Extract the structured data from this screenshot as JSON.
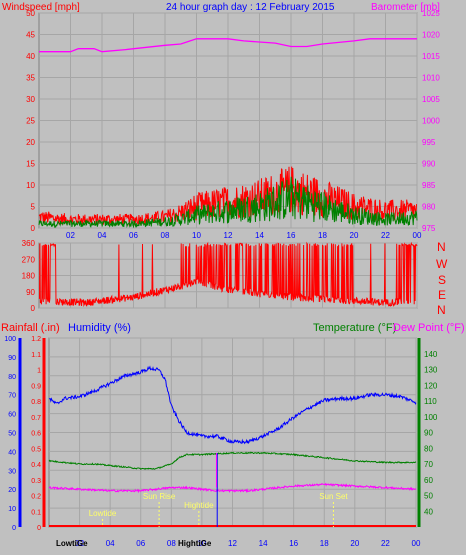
{
  "colors": {
    "bg": "#c0c0c0",
    "plot": "#c0c0c0",
    "grid": "#a6a6a6",
    "wind_axis": "#ff0000",
    "baro": "#ff00ff",
    "title": "#0000ff",
    "gust": "#ff0000",
    "wind": "#008000",
    "dir": "#ff0000",
    "humidity": "#0000ff",
    "temperature": "#008000",
    "dewpoint": "#ff00ff",
    "rain": "#ff0000",
    "tide": "#ffff66"
  },
  "header": {
    "wind_label": "Windspeed [mph]",
    "title": "24 hour graph day : 12 February 2015",
    "baro_label": "Barometer [mb]"
  },
  "bottom_header": {
    "rain_label": "Rainfall (.in)",
    "humidity_label": "Humidity (%)",
    "temp_label": "Temperature (°F)",
    "dew_label": "Dew Point (°F)"
  },
  "compass": [
    "N",
    "W",
    "S",
    "E",
    "N"
  ],
  "x_tick_labels": [
    "02",
    "04",
    "06",
    "08",
    "10",
    "12",
    "14",
    "16",
    "18",
    "20",
    "22",
    "00"
  ],
  "bottom_x_tick_labels": [
    "02",
    "04",
    "06",
    "08",
    "10",
    "12",
    "14",
    "16",
    "18",
    "20",
    "22",
    "00"
  ],
  "bottom_x_overlay": {
    "lowtide": "LowtiGe",
    "hightide": "HightiGe"
  },
  "annotations": [
    {
      "label": "Lowtide",
      "x": 3.5
    },
    {
      "label": "Sun Rise",
      "x": 7.2
    },
    {
      "label": "Hightide",
      "x": 9.8
    },
    {
      "label": "Sun Set",
      "x": 18.6
    }
  ],
  "chart_data": [
    {
      "type": "line",
      "title": "24 hour graph day : 12 February 2015",
      "x_range": [
        0,
        24
      ],
      "y_left": {
        "label": "Windspeed [mph]",
        "range": [
          0,
          50
        ],
        "ticks": [
          0,
          5,
          10,
          15,
          20,
          25,
          30,
          35,
          40,
          45,
          50
        ]
      },
      "y_right": {
        "label": "Barometer [mb]",
        "range": [
          975,
          1025
        ],
        "ticks": [
          975,
          980,
          985,
          990,
          995,
          1000,
          1005,
          1010,
          1015,
          1020,
          1025
        ]
      },
      "series": [
        {
          "role": "wind",
          "points": [
            [
              0,
              1
            ],
            [
              2,
              1
            ],
            [
              4,
              1
            ],
            [
              6,
              1
            ],
            [
              8,
              1.5
            ],
            [
              9,
              2
            ],
            [
              10,
              3
            ],
            [
              12,
              4
            ],
            [
              14,
              5
            ],
            [
              16,
              7
            ],
            [
              17,
              6
            ],
            [
              18,
              5
            ],
            [
              20,
              3
            ],
            [
              22,
              2
            ],
            [
              24,
              2.5
            ]
          ]
        },
        {
          "role": "gust",
          "points": [
            [
              0,
              2.5
            ],
            [
              2,
              2
            ],
            [
              4,
              2
            ],
            [
              6,
              2
            ],
            [
              8,
              2.5
            ],
            [
              9,
              3.5
            ],
            [
              10,
              5
            ],
            [
              12,
              6
            ],
            [
              14,
              7
            ],
            [
              16,
              9
            ],
            [
              17,
              8
            ],
            [
              18,
              7
            ],
            [
              20,
              5
            ],
            [
              22,
              4
            ],
            [
              24,
              4
            ]
          ]
        },
        {
          "role": "barometer",
          "axis": "right",
          "points": [
            [
              0,
              1016
            ],
            [
              2,
              1016
            ],
            [
              2.5,
              1016.7
            ],
            [
              3.5,
              1016.7
            ],
            [
              4,
              1016
            ],
            [
              5.5,
              1016.5
            ],
            [
              8,
              1017.5
            ],
            [
              9,
              1017.8
            ],
            [
              10,
              1019
            ],
            [
              12,
              1019
            ],
            [
              13,
              1018.5
            ],
            [
              15,
              1018
            ],
            [
              16,
              1017.2
            ],
            [
              17,
              1017.2
            ],
            [
              18,
              1017.8
            ],
            [
              20,
              1018.5
            ],
            [
              21,
              1019
            ],
            [
              24,
              1019
            ]
          ]
        }
      ]
    },
    {
      "type": "line",
      "y_range": [
        0,
        360
      ],
      "y_ticks": [
        0,
        90,
        180,
        270,
        360
      ],
      "series": [
        {
          "role": "wind_direction",
          "points": [
            [
              0,
              40
            ],
            [
              3,
              30
            ],
            [
              6,
              60
            ],
            [
              7,
              80
            ],
            [
              9,
              120
            ],
            [
              10,
              150
            ],
            [
              12,
              100
            ],
            [
              14,
              80
            ],
            [
              16,
              60
            ],
            [
              18,
              50
            ],
            [
              20,
              40
            ],
            [
              22,
              30
            ],
            [
              24,
              40
            ]
          ]
        }
      ]
    },
    {
      "type": "line",
      "x_range": [
        0,
        24
      ],
      "y_rain": {
        "label": "Rainfall (.in)",
        "range": [
          0,
          1.2
        ],
        "ticks": [
          0,
          0.1,
          0.2,
          0.3,
          0.4,
          0.5,
          0.6,
          0.7,
          0.8,
          0.9,
          1,
          1.1,
          1.2
        ]
      },
      "y_humidity": {
        "label": "Humidity (%)",
        "range": [
          0,
          100
        ],
        "ticks": [
          0,
          10,
          20,
          30,
          40,
          50,
          60,
          70,
          80,
          90,
          100
        ]
      },
      "y_temp": {
        "label": "Temperature (°F)",
        "range": [
          30,
          150
        ],
        "ticks": [
          40,
          50,
          60,
          70,
          80,
          90,
          100,
          110,
          120,
          130,
          140
        ]
      },
      "series": [
        {
          "role": "humidity",
          "points": [
            [
              0,
              68
            ],
            [
              0.5,
              65
            ],
            [
              1,
              68
            ],
            [
              2,
              69
            ],
            [
              3,
              72
            ],
            [
              4,
              76
            ],
            [
              5,
              80
            ],
            [
              6,
              82
            ],
            [
              6.6,
              84
            ],
            [
              7.2,
              83
            ],
            [
              7.6,
              78
            ],
            [
              8,
              64
            ],
            [
              8.5,
              56
            ],
            [
              9,
              50
            ],
            [
              10,
              48
            ],
            [
              11,
              48
            ],
            [
              12,
              45
            ],
            [
              13,
              45
            ],
            [
              14,
              48
            ],
            [
              15,
              52
            ],
            [
              16,
              58
            ],
            [
              17,
              63
            ],
            [
              18,
              67
            ],
            [
              19,
              68
            ],
            [
              20,
              68
            ],
            [
              21,
              70
            ],
            [
              22,
              70
            ],
            [
              23,
              69
            ],
            [
              24,
              66
            ]
          ]
        },
        {
          "role": "temperature",
          "points": [
            [
              0,
              72
            ],
            [
              1,
              71
            ],
            [
              2,
              70
            ],
            [
              3,
              70
            ],
            [
              4,
              69
            ],
            [
              5,
              68
            ],
            [
              6,
              67
            ],
            [
              7,
              67
            ],
            [
              8,
              70
            ],
            [
              8.5,
              74
            ],
            [
              9,
              76
            ],
            [
              10,
              76
            ],
            [
              12,
              77
            ],
            [
              14,
              77
            ],
            [
              16,
              76
            ],
            [
              18,
              74
            ],
            [
              20,
              72
            ],
            [
              22,
              71
            ],
            [
              24,
              71
            ]
          ]
        },
        {
          "role": "dewpoint",
          "points": [
            [
              0,
              55
            ],
            [
              2,
              54
            ],
            [
              4,
              53
            ],
            [
              6,
              53
            ],
            [
              7,
              54
            ],
            [
              8,
              55
            ],
            [
              9,
              55
            ],
            [
              10,
              54
            ],
            [
              11,
              53
            ],
            [
              12,
              53
            ],
            [
              13,
              53
            ],
            [
              14,
              54
            ],
            [
              16,
              56
            ],
            [
              18,
              57
            ],
            [
              20,
              56
            ],
            [
              22,
              55
            ],
            [
              24,
              54
            ]
          ]
        },
        {
          "role": "rainfall",
          "points": [
            [
              0,
              0
            ],
            [
              24,
              0
            ]
          ]
        }
      ]
    }
  ]
}
